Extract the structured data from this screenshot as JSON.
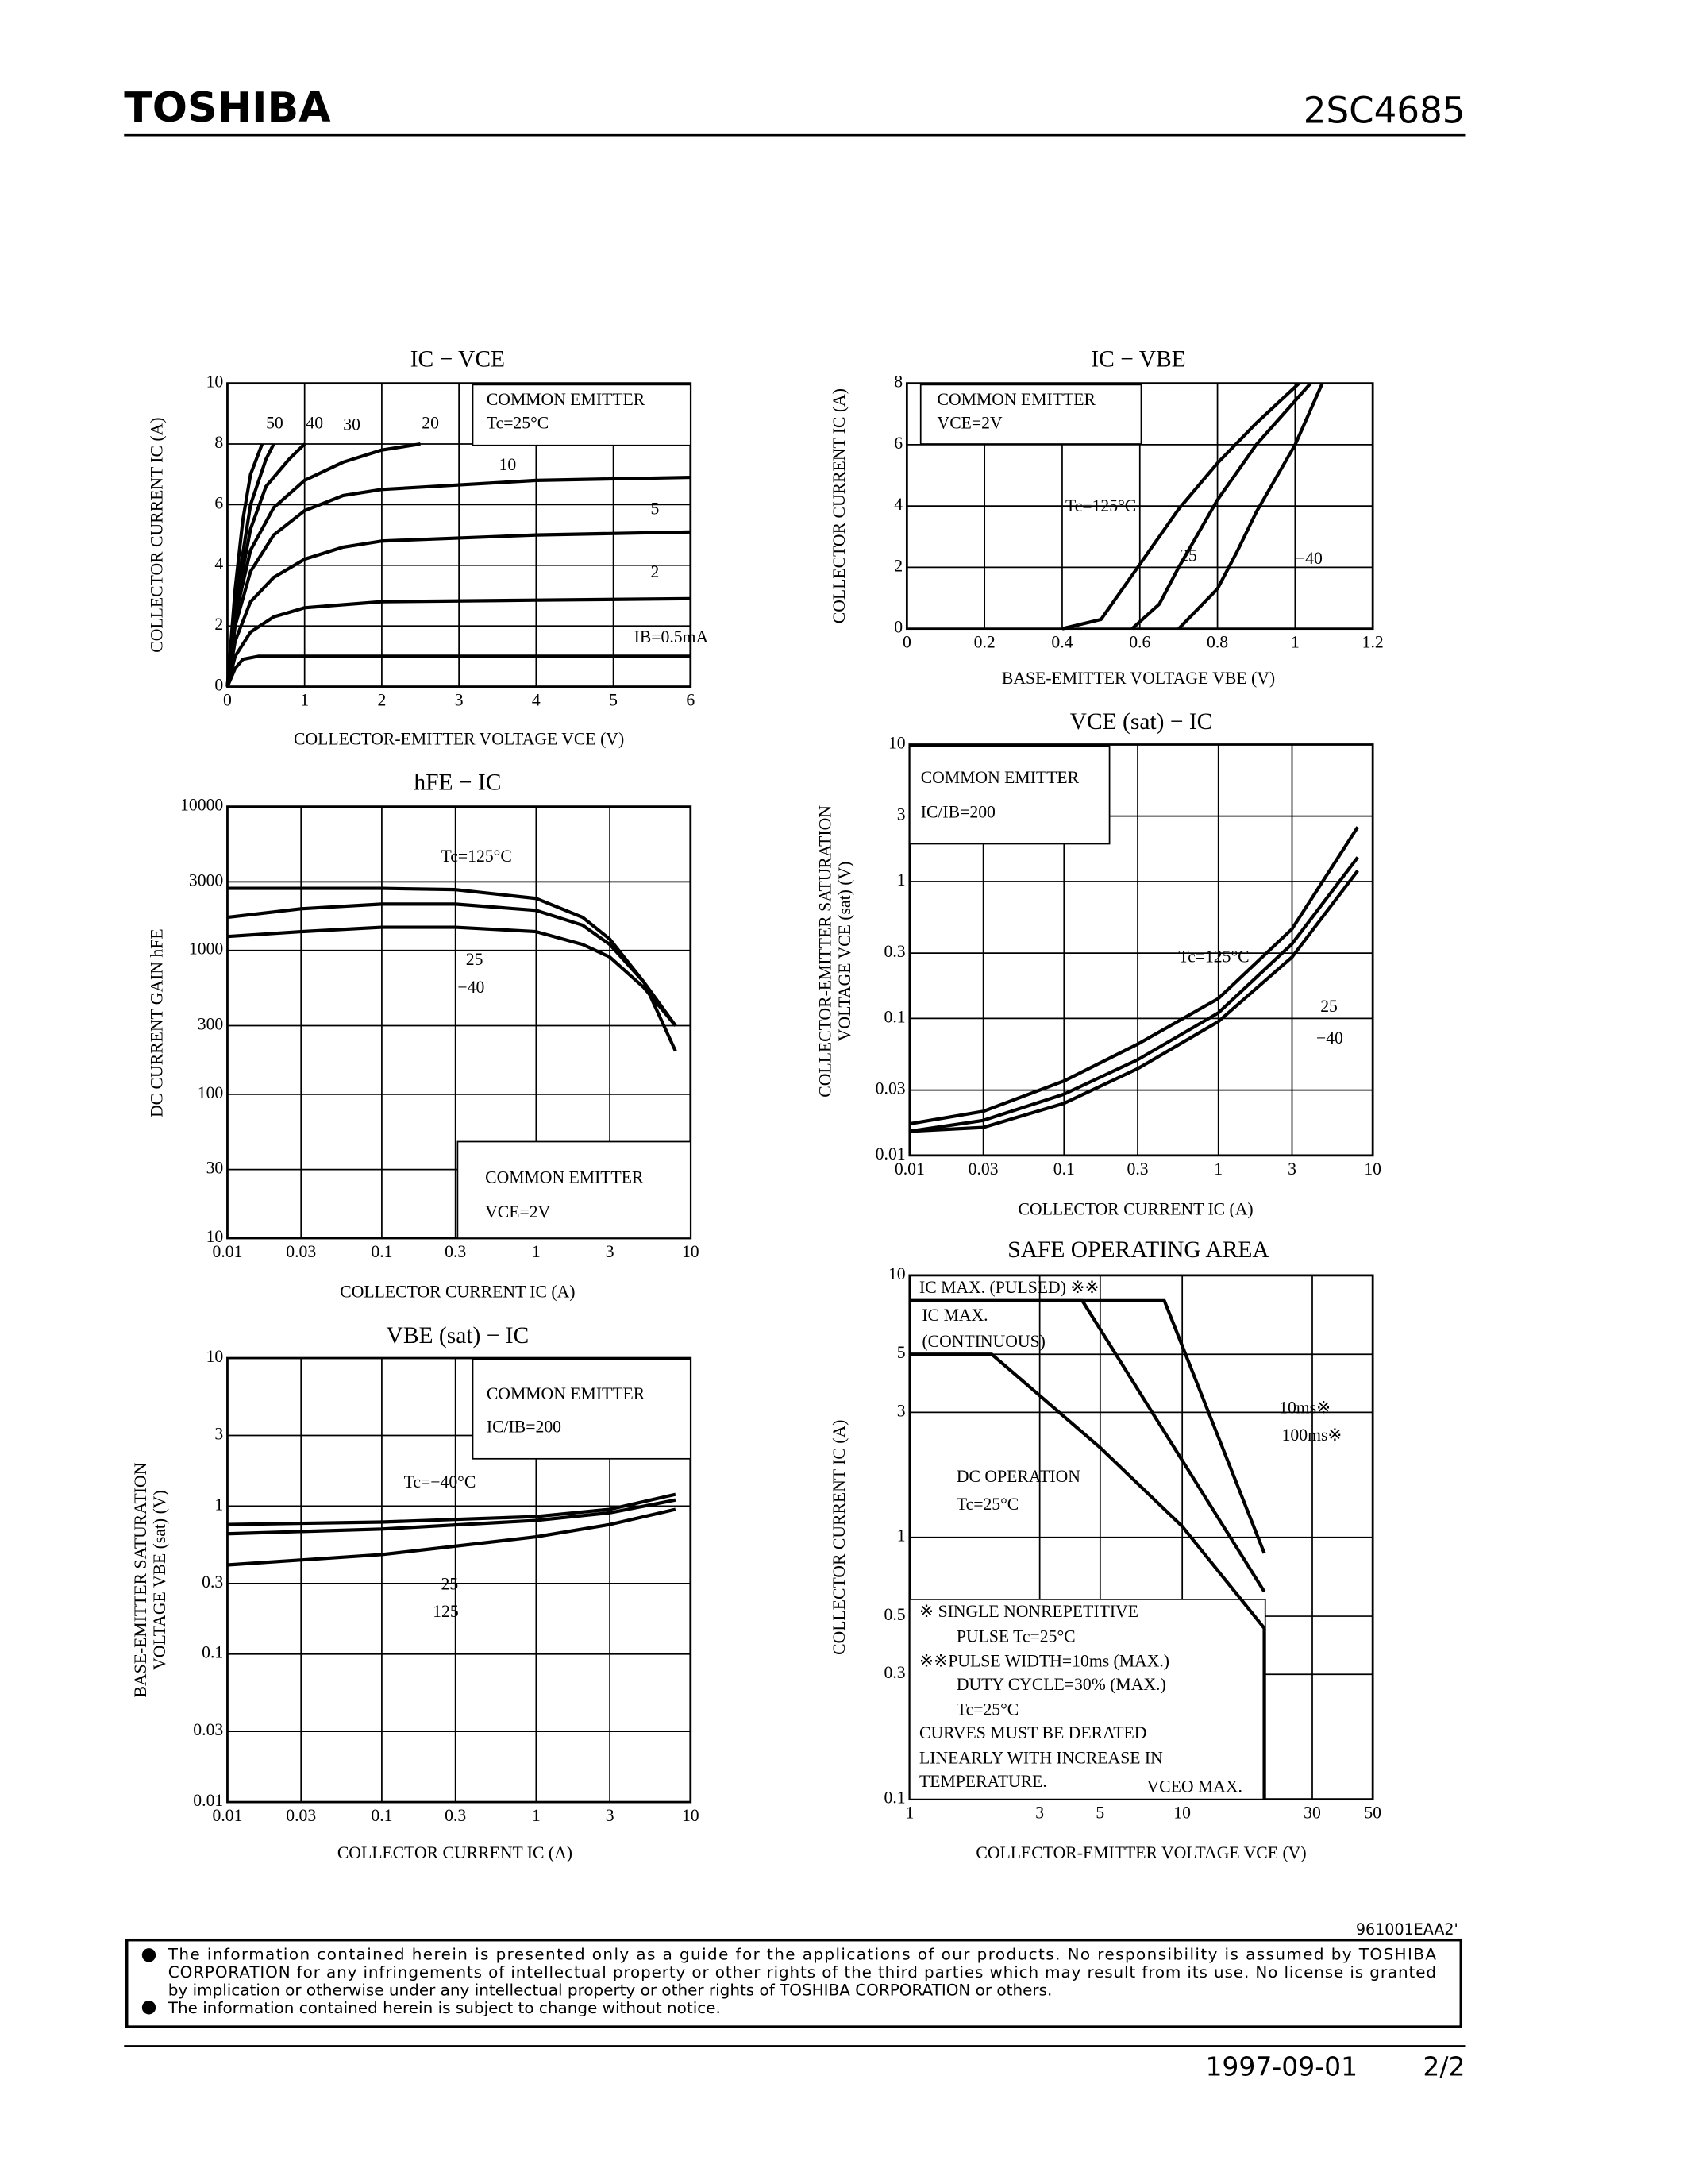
{
  "header": {
    "brand": "TOSHIBA",
    "part": "2SC4685"
  },
  "chart_data": [
    {
      "type": "line",
      "title": "IC − VCE",
      "xlabel": "COLLECTOR-EMITTER VOLTAGE VCE (V)",
      "ylabel": "COLLECTOR CURRENT IC (A)",
      "xlim": [
        0,
        6
      ],
      "ylim": [
        0,
        10
      ],
      "xticks": [
        0,
        1,
        2,
        3,
        4,
        5,
        6
      ],
      "yticks": [
        0,
        2,
        4,
        6,
        8,
        10
      ],
      "grid": true,
      "color": "#000000",
      "annotations": [
        "COMMON EMITTER",
        "Tc=25°C"
      ],
      "series": [
        {
          "name": "50",
          "x": [
            0,
            0.1,
            0.2,
            0.3,
            0.45
          ],
          "values": [
            0,
            3.2,
            5.5,
            7,
            8
          ]
        },
        {
          "name": "40",
          "x": [
            0,
            0.1,
            0.3,
            0.5,
            0.6
          ],
          "values": [
            0,
            2.8,
            6,
            7.5,
            8
          ]
        },
        {
          "name": "30",
          "x": [
            0,
            0.1,
            0.3,
            0.5,
            0.8,
            1
          ],
          "values": [
            0,
            2.5,
            5.2,
            6.6,
            7.5,
            8
          ]
        },
        {
          "name": "20",
          "x": [
            0,
            0.1,
            0.3,
            0.6,
            1,
            1.5,
            2,
            2.5
          ],
          "values": [
            0,
            2.3,
            4.5,
            5.9,
            6.8,
            7.4,
            7.8,
            8
          ]
        },
        {
          "name": "10",
          "x": [
            0,
            0.1,
            0.3,
            0.6,
            1,
            1.5,
            2,
            4,
            6
          ],
          "values": [
            0,
            2,
            3.8,
            5,
            5.8,
            6.3,
            6.5,
            6.8,
            6.9
          ]
        },
        {
          "name": "5",
          "x": [
            0,
            0.1,
            0.3,
            0.6,
            1,
            1.5,
            2,
            4,
            6
          ],
          "values": [
            0,
            1.5,
            2.8,
            3.6,
            4.2,
            4.6,
            4.8,
            5,
            5.1
          ]
        },
        {
          "name": "2",
          "x": [
            0,
            0.1,
            0.3,
            0.6,
            1,
            2,
            4,
            6
          ],
          "values": [
            0,
            1,
            1.8,
            2.3,
            2.6,
            2.8,
            2.85,
            2.9
          ]
        },
        {
          "name": "IB=0.5mA",
          "x": [
            0,
            0.1,
            0.2,
            0.4,
            1,
            6
          ],
          "values": [
            0,
            0.6,
            0.9,
            1,
            1,
            1
          ]
        }
      ]
    },
    {
      "type": "line",
      "title": "IC − VBE",
      "xlabel": "BASE-EMITTER VOLTAGE VBE (V)",
      "ylabel": "COLLECTOR CURRENT IC (A)",
      "xlim": [
        0,
        1.2
      ],
      "ylim": [
        0,
        8
      ],
      "xticks": [
        0,
        0.2,
        0.4,
        0.6,
        0.8,
        1.0,
        1.2
      ],
      "yticks": [
        0,
        2,
        4,
        6,
        8
      ],
      "grid": true,
      "color": "#000000",
      "annotations": [
        "COMMON EMITTER",
        "VCE=2V"
      ],
      "series": [
        {
          "name": "Tc=125°C",
          "x": [
            0.4,
            0.5,
            0.6,
            0.7,
            0.8,
            0.9,
            1.01
          ],
          "values": [
            0,
            0.3,
            2.1,
            3.9,
            5.4,
            6.7,
            8
          ]
        },
        {
          "name": "25",
          "x": [
            0.58,
            0.65,
            0.7,
            0.8,
            0.9,
            1.04
          ],
          "values": [
            0,
            0.8,
            2,
            4.2,
            6,
            8
          ]
        },
        {
          "name": "−40",
          "x": [
            0.7,
            0.8,
            0.85,
            0.9,
            1.0,
            1.07
          ],
          "values": [
            0,
            1.3,
            2.5,
            3.8,
            6,
            8
          ]
        }
      ]
    },
    {
      "type": "line",
      "title": "hFE − IC",
      "xlabel": "COLLECTOR CURRENT IC (A)",
      "ylabel": "DC CURRENT GAIN hFE",
      "xlog": true,
      "ylog": true,
      "xlim": [
        0.01,
        10
      ],
      "ylim": [
        10,
        10000
      ],
      "xticks": [
        0.01,
        0.03,
        0.1,
        0.3,
        1,
        3,
        10
      ],
      "yticks": [
        10,
        30,
        100,
        300,
        1000,
        3000,
        10000
      ],
      "grid": true,
      "color": "#000000",
      "annotations": [
        "COMMON EMITTER",
        "VCE=2V"
      ],
      "series": [
        {
          "name": "Tc=125°C",
          "x": [
            0.01,
            0.1,
            0.3,
            1,
            2,
            3,
            5,
            8
          ],
          "values": [
            2700,
            2700,
            2650,
            2300,
            1700,
            1200,
            600,
            300
          ]
        },
        {
          "name": "25",
          "x": [
            0.01,
            0.03,
            0.1,
            0.3,
            1,
            2,
            3,
            5,
            8
          ],
          "values": [
            1700,
            1950,
            2100,
            2100,
            1900,
            1500,
            1100,
            600,
            200
          ]
        },
        {
          "name": "−40",
          "x": [
            0.01,
            0.03,
            0.1,
            0.3,
            1,
            2,
            3,
            5,
            8
          ],
          "values": [
            1250,
            1350,
            1450,
            1450,
            1350,
            1100,
            900,
            550,
            300
          ]
        }
      ]
    },
    {
      "type": "line",
      "title": "VCE (sat) − IC",
      "xlabel": "COLLECTOR CURRENT IC (A)",
      "ylabel": [
        "COLLECTOR-EMITTER SATURATION",
        "VOLTAGE VCE (sat) (V)"
      ],
      "xlog": true,
      "ylog": true,
      "xlim": [
        0.01,
        10
      ],
      "ylim": [
        0.01,
        10
      ],
      "xticks": [
        0.01,
        0.03,
        0.1,
        0.3,
        1,
        3,
        10
      ],
      "yticks": [
        0.01,
        0.03,
        0.1,
        0.3,
        1,
        3,
        10
      ],
      "grid": true,
      "color": "#000000",
      "annotations": [
        "COMMON EMITTER",
        "IC/IB=200"
      ],
      "series": [
        {
          "name": "Tc=125°C",
          "x": [
            0.01,
            0.03,
            0.1,
            0.3,
            1,
            3,
            8
          ],
          "values": [
            0.017,
            0.021,
            0.035,
            0.065,
            0.14,
            0.45,
            2.5
          ]
        },
        {
          "name": "25",
          "x": [
            0.01,
            0.03,
            0.1,
            0.3,
            1,
            3,
            8
          ],
          "values": [
            0.015,
            0.018,
            0.028,
            0.05,
            0.11,
            0.35,
            1.5
          ]
        },
        {
          "name": "−40",
          "x": [
            0.01,
            0.03,
            0.1,
            0.3,
            1,
            3,
            8
          ],
          "values": [
            0.015,
            0.016,
            0.024,
            0.043,
            0.095,
            0.28,
            1.2
          ]
        }
      ]
    },
    {
      "type": "line",
      "title": "VBE (sat) − IC",
      "xlabel": "COLLECTOR CURRENT IC (A)",
      "ylabel": [
        "BASE-EMITTER SATURATION",
        "VOLTAGE VBE (sat) (V)"
      ],
      "xlog": true,
      "ylog": true,
      "xlim": [
        0.01,
        10
      ],
      "ylim": [
        0.01,
        10
      ],
      "xticks": [
        0.01,
        0.03,
        0.1,
        0.3,
        1,
        3,
        10
      ],
      "yticks": [
        0.01,
        0.03,
        0.1,
        0.3,
        1,
        3,
        10
      ],
      "grid": true,
      "color": "#000000",
      "annotations": [
        "COMMON EMITTER",
        "IC/IB=200"
      ],
      "series": [
        {
          "name": "Tc=−40°C",
          "x": [
            0.01,
            0.1,
            1,
            3,
            8
          ],
          "values": [
            0.75,
            0.78,
            0.85,
            0.95,
            1.2
          ]
        },
        {
          "name": "25",
          "x": [
            0.01,
            0.1,
            1,
            3,
            8
          ],
          "values": [
            0.65,
            0.7,
            0.8,
            0.9,
            1.1
          ]
        },
        {
          "name": "125",
          "x": [
            0.01,
            0.1,
            1,
            3,
            8
          ],
          "values": [
            0.4,
            0.47,
            0.62,
            0.75,
            0.95
          ]
        }
      ]
    },
    {
      "type": "line",
      "title": "SAFE OPERATING AREA",
      "xlabel": "COLLECTOR-EMITTER VOLTAGE VCE (V)",
      "ylabel": "COLLECTOR CURRENT IC (A)",
      "xlog": true,
      "ylog": true,
      "xlim": [
        1,
        50
      ],
      "ylim": [
        0.1,
        10
      ],
      "xticks": [
        1,
        3,
        5,
        10,
        30,
        50
      ],
      "yticks": [
        0.1,
        0.3,
        0.5,
        1,
        3,
        5,
        10
      ],
      "grid": true,
      "color": "#000000",
      "annotations": [
        "IC MAX. (PULSED) ※※",
        "IC MAX.",
        "(CONTINUOUS)",
        "Tc=25°C",
        "※  SINGLE NONREPETITIVE",
        "PULSE Tc=25°C",
        "※※PULSE WIDTH=10ms (MAX.)",
        "DUTY CYCLE=30% (MAX.)",
        "Tc=25°C",
        "CURVES MUST BE DERATED",
        "LINEARLY WITH INCREASE IN",
        "TEMPERATURE.",
        "VCEO MAX."
      ],
      "series": [
        {
          "name": "10ms※",
          "x": [
            1,
            8.6,
            20
          ],
          "values": [
            8,
            8,
            0.87
          ]
        },
        {
          "name": "100ms※",
          "x": [
            1,
            4.3,
            20
          ],
          "values": [
            8,
            8,
            0.62
          ]
        },
        {
          "name": "DC OPERATION",
          "x": [
            1,
            2,
            5,
            10,
            20,
            20
          ],
          "values": [
            5,
            5,
            2.2,
            1.1,
            0.45,
            0.1
          ]
        }
      ]
    }
  ],
  "footer": {
    "code": "961001EAA2'",
    "notes": [
      "The information contained herein is presented only as a guide for the applications of our products. No responsibility is assumed by TOSHIBA",
      "CORPORATION for any infringements of intellectual property or other rights of the third parties which may result from its use. No license is granted",
      "by implication or otherwise under any intellectual property or other rights of TOSHIBA CORPORATION or others.",
      "The information contained herein is subject to change without notice."
    ],
    "date": "1997-09-01",
    "page": "2/2"
  }
}
